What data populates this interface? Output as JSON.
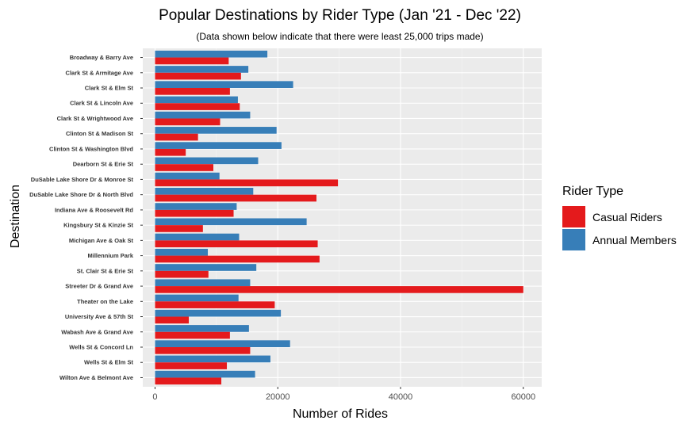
{
  "chart_data": {
    "type": "bar",
    "orientation": "horizontal",
    "title": "Popular Destinations by Rider Type (Jan '21 - Dec '22)",
    "subtitle": "(Data shown below indicate that there were least 25,000 trips made)",
    "xlabel": "Number of Rides",
    "ylabel": "Destination",
    "xlim": [
      -2000,
      63000
    ],
    "xticks": [
      0,
      20000,
      40000,
      60000
    ],
    "grid": true,
    "legend_position": "right",
    "legend_title": "Rider Type",
    "categories": [
      "Broadway & Barry Ave",
      "Clark St & Armitage Ave",
      "Clark St & Elm St",
      "Clark St & Lincoln Ave",
      "Clark St & Wrightwood Ave",
      "Clinton St & Madison St",
      "Clinton St & Washington Blvd",
      "Dearborn St & Erie St",
      "DuSable Lake Shore Dr & Monroe St",
      "DuSable Lake Shore Dr & North Blvd",
      "Indiana Ave & Roosevelt Rd",
      "Kingsbury St & Kinzie St",
      "Michigan Ave & Oak St",
      "Millennium Park",
      "St. Clair St & Erie St",
      "Streeter Dr & Grand Ave",
      "Theater on the Lake",
      "University Ave & 57th St",
      "Wabash Ave & Grand Ave",
      "Wells St & Concord Ln",
      "Wells St & Elm St",
      "Wilton Ave & Belmont Ave"
    ],
    "series": [
      {
        "name": "Casual Riders",
        "color": "#E41A1C",
        "values": [
          12000,
          14000,
          12200,
          13800,
          10600,
          7000,
          5000,
          9500,
          29800,
          26300,
          12800,
          7800,
          26500,
          26800,
          8700,
          60000,
          19500,
          5500,
          12200,
          15500,
          11700,
          10800
        ]
      },
      {
        "name": "Annual Members",
        "color": "#377EB8",
        "values": [
          18300,
          15200,
          22500,
          13500,
          15500,
          19800,
          20600,
          16800,
          10500,
          16000,
          13300,
          24700,
          13700,
          8600,
          16500,
          15500,
          13600,
          20500,
          15300,
          22000,
          18800,
          16300
        ]
      }
    ]
  }
}
